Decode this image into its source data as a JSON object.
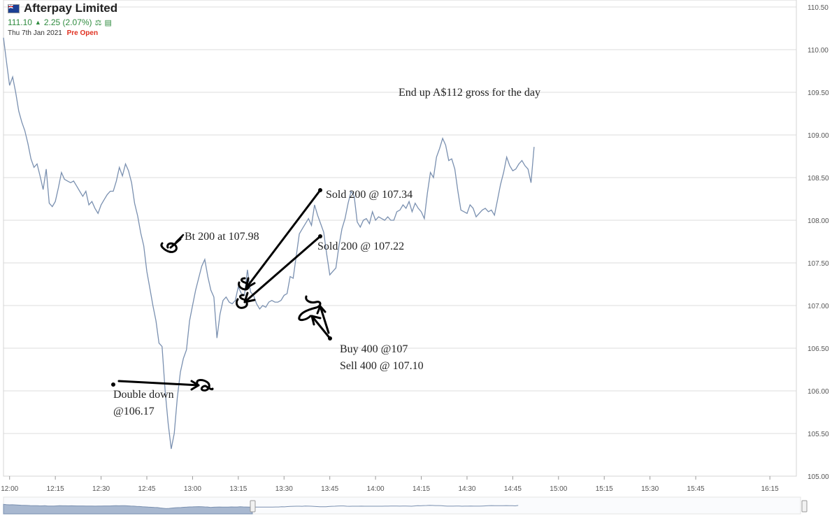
{
  "header": {
    "company": "Afterpay Limited",
    "flag_icon": "australia-flag-icon",
    "price": "111.10",
    "change": "2.25 (2.07%)",
    "date": "Thu 7th Jan 2021",
    "status": "Pre Open",
    "colors": {
      "up": "#2e8b3e",
      "status": "#e03020",
      "line": "#7a90b0"
    }
  },
  "annotations": {
    "note": "End up A$112 gross for the day",
    "bt": "Bt 200 at 107.98",
    "sold1": "Sold 200 @ 107.34",
    "sold2": "Sold 200 @ 107.22",
    "buy": "Buy 400 @107",
    "sell": "Sell 400 @ 107.10",
    "dd1": "Double down",
    "dd2": "@106.17"
  },
  "chart_data": {
    "type": "line",
    "title": "",
    "xlabel": "",
    "ylabel": "",
    "ylim": [
      105.0,
      110.5
    ],
    "xlim": [
      "11:58",
      "16:18"
    ],
    "x_ticks": [
      "12:00",
      "12:15",
      "12:30",
      "12:45",
      "13:00",
      "13:15",
      "13:30",
      "13:45",
      "14:00",
      "14:15",
      "14:30",
      "14:45",
      "15:00",
      "15:15",
      "15:30",
      "15:45",
      "16:15"
    ],
    "y_ticks": [
      "105.00",
      "105.50",
      "106.00",
      "106.50",
      "107.00",
      "107.50",
      "108.00",
      "108.50",
      "109.00",
      "109.50",
      "110.00",
      "110.50"
    ],
    "grid": true,
    "y_axis_position": "right",
    "series": [
      {
        "values": [
          [
            "11:58",
            110.14
          ],
          [
            "11:59",
            109.85
          ],
          [
            "12:00",
            109.58
          ],
          [
            "12:01",
            109.68
          ],
          [
            "12:02",
            109.5
          ],
          [
            "12:03",
            109.28
          ],
          [
            "12:04",
            109.15
          ],
          [
            "12:05",
            109.05
          ],
          [
            "12:06",
            108.9
          ],
          [
            "12:07",
            108.72
          ],
          [
            "12:08",
            108.62
          ],
          [
            "12:09",
            108.66
          ],
          [
            "12:10",
            108.52
          ],
          [
            "12:11",
            108.36
          ],
          [
            "12:12",
            108.6
          ],
          [
            "12:13",
            108.2
          ],
          [
            "12:14",
            108.16
          ],
          [
            "12:15",
            108.22
          ],
          [
            "12:16",
            108.38
          ],
          [
            "12:17",
            108.56
          ],
          [
            "12:18",
            108.48
          ],
          [
            "12:19",
            108.46
          ],
          [
            "12:20",
            108.44
          ],
          [
            "12:21",
            108.46
          ],
          [
            "12:22",
            108.4
          ],
          [
            "12:23",
            108.34
          ],
          [
            "12:24",
            108.28
          ],
          [
            "12:25",
            108.34
          ],
          [
            "12:26",
            108.18
          ],
          [
            "12:27",
            108.22
          ],
          [
            "12:28",
            108.14
          ],
          [
            "12:29",
            108.08
          ],
          [
            "12:30",
            108.18
          ],
          [
            "12:31",
            108.24
          ],
          [
            "12:32",
            108.3
          ],
          [
            "12:33",
            108.34
          ],
          [
            "12:34",
            108.34
          ],
          [
            "12:35",
            108.46
          ],
          [
            "12:36",
            108.62
          ],
          [
            "12:37",
            108.52
          ],
          [
            "12:38",
            108.66
          ],
          [
            "12:39",
            108.58
          ],
          [
            "12:40",
            108.44
          ],
          [
            "12:41",
            108.2
          ],
          [
            "12:42",
            108.05
          ],
          [
            "12:43",
            107.85
          ],
          [
            "12:44",
            107.7
          ],
          [
            "12:45",
            107.4
          ],
          [
            "12:46",
            107.2
          ],
          [
            "12:47",
            107.0
          ],
          [
            "12:48",
            106.82
          ],
          [
            "12:49",
            106.56
          ],
          [
            "12:50",
            106.52
          ],
          [
            "12:51",
            106.0
          ],
          [
            "12:52",
            105.62
          ],
          [
            "12:53",
            105.32
          ],
          [
            "12:54",
            105.5
          ],
          [
            "12:55",
            105.92
          ],
          [
            "12:56",
            106.22
          ],
          [
            "12:57",
            106.38
          ],
          [
            "12:58",
            106.48
          ],
          [
            "12:59",
            106.82
          ],
          [
            "13:00",
            107.0
          ],
          [
            "13:01",
            107.18
          ],
          [
            "13:02",
            107.32
          ],
          [
            "13:03",
            107.46
          ],
          [
            "13:04",
            107.54
          ],
          [
            "13:05",
            107.34
          ],
          [
            "13:06",
            107.18
          ],
          [
            "13:07",
            107.1
          ],
          [
            "13:08",
            106.62
          ],
          [
            "13:09",
            106.9
          ],
          [
            "13:10",
            107.06
          ],
          [
            "13:11",
            107.1
          ],
          [
            "13:12",
            107.04
          ],
          [
            "13:13",
            107.02
          ],
          [
            "13:14",
            107.06
          ],
          [
            "13:15",
            107.22
          ],
          [
            "13:16",
            107.14
          ],
          [
            "13:17",
            107.12
          ],
          [
            "13:18",
            107.42
          ],
          [
            "13:19",
            107.16
          ],
          [
            "13:20",
            107.12
          ],
          [
            "13:21",
            107.02
          ],
          [
            "13:22",
            106.96
          ],
          [
            "13:23",
            107.0
          ],
          [
            "13:24",
            106.98
          ],
          [
            "13:25",
            107.04
          ],
          [
            "13:26",
            107.06
          ],
          [
            "13:27",
            107.04
          ],
          [
            "13:28",
            107.04
          ],
          [
            "13:29",
            107.06
          ],
          [
            "13:30",
            107.12
          ],
          [
            "13:31",
            107.14
          ],
          [
            "13:32",
            107.34
          ],
          [
            "13:33",
            107.32
          ],
          [
            "13:34",
            107.58
          ],
          [
            "13:35",
            107.84
          ],
          [
            "13:36",
            107.9
          ],
          [
            "13:37",
            107.96
          ],
          [
            "13:38",
            108.02
          ],
          [
            "13:39",
            107.94
          ],
          [
            "13:40",
            108.18
          ],
          [
            "13:41",
            108.06
          ],
          [
            "13:42",
            107.96
          ],
          [
            "13:43",
            107.86
          ],
          [
            "13:44",
            107.6
          ],
          [
            "13:45",
            107.36
          ],
          [
            "13:46",
            107.4
          ],
          [
            "13:47",
            107.44
          ],
          [
            "13:48",
            107.7
          ],
          [
            "13:49",
            107.9
          ],
          [
            "13:50",
            108.02
          ],
          [
            "13:51",
            108.2
          ],
          [
            "13:52",
            108.34
          ],
          [
            "13:53",
            108.28
          ],
          [
            "13:54",
            107.98
          ],
          [
            "13:55",
            107.92
          ],
          [
            "13:56",
            108.0
          ],
          [
            "13:57",
            108.02
          ],
          [
            "13:58",
            107.96
          ],
          [
            "13:59",
            108.1
          ],
          [
            "14:00",
            108.0
          ],
          [
            "14:01",
            108.04
          ],
          [
            "14:02",
            108.02
          ],
          [
            "14:03",
            108.0
          ],
          [
            "14:04",
            108.04
          ],
          [
            "14:05",
            108.0
          ],
          [
            "14:06",
            108.0
          ],
          [
            "14:07",
            108.1
          ],
          [
            "14:08",
            108.12
          ],
          [
            "14:09",
            108.18
          ],
          [
            "14:10",
            108.14
          ],
          [
            "14:11",
            108.22
          ],
          [
            "14:12",
            108.1
          ],
          [
            "14:13",
            108.2
          ],
          [
            "14:14",
            108.14
          ],
          [
            "14:15",
            108.1
          ],
          [
            "14:16",
            108.02
          ],
          [
            "14:17",
            108.32
          ],
          [
            "14:18",
            108.56
          ],
          [
            "14:19",
            108.5
          ],
          [
            "14:20",
            108.74
          ],
          [
            "14:21",
            108.84
          ],
          [
            "14:22",
            108.96
          ],
          [
            "14:23",
            108.88
          ],
          [
            "14:24",
            108.7
          ],
          [
            "14:25",
            108.72
          ],
          [
            "14:26",
            108.6
          ],
          [
            "14:27",
            108.34
          ],
          [
            "14:28",
            108.12
          ],
          [
            "14:29",
            108.1
          ],
          [
            "14:30",
            108.08
          ],
          [
            "14:31",
            108.18
          ],
          [
            "14:32",
            108.14
          ],
          [
            "14:33",
            108.04
          ],
          [
            "14:34",
            108.08
          ],
          [
            "14:35",
            108.12
          ],
          [
            "14:36",
            108.14
          ],
          [
            "14:37",
            108.1
          ],
          [
            "14:38",
            108.12
          ],
          [
            "14:39",
            108.06
          ],
          [
            "14:40",
            108.24
          ],
          [
            "14:41",
            108.42
          ],
          [
            "14:42",
            108.56
          ],
          [
            "14:43",
            108.74
          ],
          [
            "14:44",
            108.64
          ],
          [
            "14:45",
            108.58
          ],
          [
            "14:46",
            108.6
          ],
          [
            "14:47",
            108.66
          ],
          [
            "14:48",
            108.7
          ],
          [
            "14:49",
            108.64
          ],
          [
            "14:50",
            108.6
          ],
          [
            "14:51",
            108.44
          ],
          [
            "14:52",
            108.86
          ]
        ]
      }
    ]
  }
}
